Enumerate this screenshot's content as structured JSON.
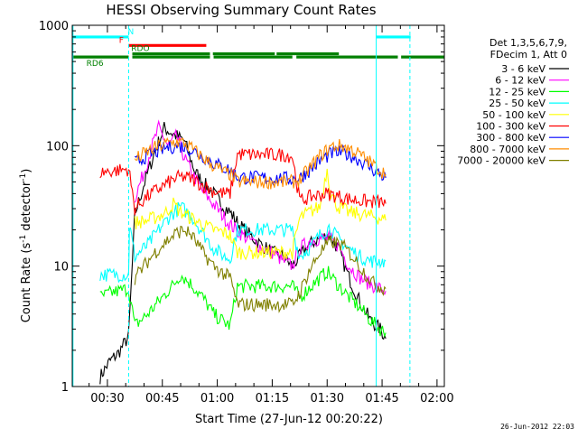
{
  "chart_data": {
    "type": "line",
    "title": "HESSI Observing Summary Count Rates",
    "xlabel": "Start Time (27-Jun-12 00:20:22)",
    "ylabel": "Count Rate (s",
    "ylabel_sup1": "-1",
    "ylabel_mid": " detector",
    "ylabel_sup2": "-1",
    "ylabel_end": ")",
    "yscale": "log",
    "ylim": [
      1,
      1000
    ],
    "xlim_min": [
      20.4,
      122.0
    ],
    "x_unit": "minutes after 00:00",
    "y_ticks": [
      {
        "value": 1,
        "label": "1"
      },
      {
        "value": 10,
        "label": "10"
      },
      {
        "value": 100,
        "label": "100"
      },
      {
        "value": 1000,
        "label": "1000"
      }
    ],
    "x_ticks": [
      {
        "value": 30,
        "label": "00:30"
      },
      {
        "value": 45,
        "label": "00:45"
      },
      {
        "value": 60,
        "label": "01:00"
      },
      {
        "value": 75,
        "label": "01:15"
      },
      {
        "value": 90,
        "label": "01:30"
      },
      {
        "value": 105,
        "label": "01:45"
      },
      {
        "value": 120,
        "label": "02:00"
      }
    ],
    "legend_header": [
      "Det 1,3,5,6,7,9,",
      "FDecim 1, Att 0"
    ],
    "series": [
      {
        "name": "3 - 6 keV",
        "color": "#000000",
        "values": [
          [
            28.0,
            1.2
          ],
          [
            30.5,
            1.6
          ],
          [
            33.0,
            1.9
          ],
          [
            35.8,
            2.6
          ],
          [
            37.5,
            27
          ],
          [
            40.2,
            50
          ],
          [
            43.0,
            90
          ],
          [
            45.5,
            140
          ],
          [
            48.0,
            125
          ],
          [
            51.0,
            110
          ],
          [
            54.0,
            60
          ],
          [
            56.5,
            48
          ],
          [
            59.0,
            40
          ],
          [
            61.5,
            32
          ],
          [
            63.5,
            28
          ],
          [
            66.0,
            22
          ],
          [
            69.0,
            18
          ],
          [
            72.0,
            15
          ],
          [
            75.0,
            13
          ],
          [
            78.0,
            12
          ],
          [
            80.5,
            10
          ],
          [
            82.5,
            12
          ],
          [
            85.0,
            15
          ],
          [
            88.0,
            17
          ],
          [
            90.5,
            18
          ],
          [
            93.0,
            14
          ],
          [
            96.0,
            8
          ],
          [
            99.0,
            5
          ],
          [
            102.0,
            3.5
          ],
          [
            104.5,
            3.0
          ],
          [
            106.0,
            2.5
          ]
        ]
      },
      {
        "name": "6 - 12 keV",
        "color": "#ff00ff",
        "values": [
          [
            37.5,
            37
          ],
          [
            40.0,
            60
          ],
          [
            42.0,
            95
          ],
          [
            44.0,
            140
          ],
          [
            46.5,
            100
          ],
          [
            49.0,
            120
          ],
          [
            51.0,
            80
          ],
          [
            53.0,
            60
          ],
          [
            56.0,
            42
          ],
          [
            60.0,
            30
          ],
          [
            63.5,
            22
          ],
          [
            67.0,
            18
          ],
          [
            71.0,
            15
          ],
          [
            75.0,
            13
          ],
          [
            78.0,
            11
          ],
          [
            80.5,
            10
          ],
          [
            82.5,
            14
          ],
          [
            85.0,
            16
          ],
          [
            88.0,
            17
          ],
          [
            90.5,
            17
          ],
          [
            93.0,
            15
          ],
          [
            96.0,
            10
          ],
          [
            99.0,
            8
          ],
          [
            102.0,
            7
          ],
          [
            104.5,
            6.5
          ],
          [
            106.0,
            6.2
          ]
        ]
      },
      {
        "name": "12 - 25 keV",
        "color": "#00ff00",
        "values": [
          [
            28.0,
            5.5
          ],
          [
            31.0,
            6.0
          ],
          [
            34.0,
            6.3
          ],
          [
            35.8,
            6.5
          ],
          [
            37.5,
            3.2
          ],
          [
            41.0,
            4.0
          ],
          [
            45.0,
            5.5
          ],
          [
            48.0,
            7.0
          ],
          [
            50.0,
            8.5
          ],
          [
            53.0,
            7.0
          ],
          [
            56.0,
            5.5
          ],
          [
            59.0,
            4.0
          ],
          [
            62.0,
            3.4
          ],
          [
            63.5,
            3.2
          ],
          [
            65.5,
            6.8
          ],
          [
            70.0,
            6.8
          ],
          [
            75.0,
            6.8
          ],
          [
            80.5,
            6.8
          ],
          [
            82.5,
            5.5
          ],
          [
            86.0,
            7.0
          ],
          [
            90.0,
            9.0
          ],
          [
            93.0,
            7.0
          ],
          [
            96.0,
            5.5
          ],
          [
            99.0,
            4.5
          ],
          [
            102.0,
            3.5
          ],
          [
            104.5,
            3.0
          ],
          [
            106.0,
            2.8
          ]
        ]
      },
      {
        "name": "25 - 50 keV",
        "color": "#00ffff",
        "values": [
          [
            28.0,
            8.5
          ],
          [
            35.8,
            8.5
          ],
          [
            36.0,
            22
          ],
          [
            37.5,
            12
          ],
          [
            41.0,
            15
          ],
          [
            44.0,
            20
          ],
          [
            47.0,
            26
          ],
          [
            50.0,
            31
          ],
          [
            53.0,
            26
          ],
          [
            56.0,
            19
          ],
          [
            59.0,
            14
          ],
          [
            62.0,
            12
          ],
          [
            63.5,
            11.5
          ],
          [
            65.5,
            20
          ],
          [
            72.0,
            20
          ],
          [
            80.5,
            20
          ],
          [
            82.5,
            12
          ],
          [
            85.0,
            14
          ],
          [
            88.0,
            18
          ],
          [
            90.5,
            21
          ],
          [
            93.0,
            17
          ],
          [
            96.0,
            14
          ],
          [
            99.0,
            12
          ],
          [
            102.0,
            11
          ],
          [
            104.5,
            11
          ],
          [
            106.0,
            11
          ]
        ]
      },
      {
        "name": "50 - 100 keV",
        "color": "#ffff00",
        "values": [
          [
            37.5,
            23
          ],
          [
            41.0,
            24
          ],
          [
            44.0,
            26
          ],
          [
            46.0,
            28
          ],
          [
            48.0,
            33
          ],
          [
            50.0,
            28
          ],
          [
            53.0,
            25
          ],
          [
            56.0,
            22
          ],
          [
            59.0,
            20
          ],
          [
            62.0,
            19
          ],
          [
            63.5,
            18
          ],
          [
            65.5,
            13
          ],
          [
            72.0,
            13
          ],
          [
            80.5,
            13
          ],
          [
            82.5,
            25
          ],
          [
            85.0,
            28
          ],
          [
            88.0,
            31
          ],
          [
            90.0,
            65
          ],
          [
            91.0,
            40
          ],
          [
            93.0,
            31
          ],
          [
            96.0,
            28
          ],
          [
            99.0,
            27
          ],
          [
            102.0,
            26
          ],
          [
            104.5,
            25
          ],
          [
            106.0,
            24
          ]
        ]
      },
      {
        "name": "100 - 300 keV",
        "color": "#ff0000",
        "values": [
          [
            28.0,
            60
          ],
          [
            35.8,
            64
          ],
          [
            37.5,
            30
          ],
          [
            40.0,
            36
          ],
          [
            43.0,
            42
          ],
          [
            46.0,
            48
          ],
          [
            49.0,
            54
          ],
          [
            51.0,
            55
          ],
          [
            53.0,
            53
          ],
          [
            56.0,
            47
          ],
          [
            59.0,
            42
          ],
          [
            62.0,
            40
          ],
          [
            63.5,
            40
          ],
          [
            65.5,
            85
          ],
          [
            72.0,
            84
          ],
          [
            78.0,
            84
          ],
          [
            80.5,
            82
          ],
          [
            82.5,
            35
          ],
          [
            86.0,
            38
          ],
          [
            90.0,
            40
          ],
          [
            93.0,
            38
          ],
          [
            96.0,
            36
          ],
          [
            99.0,
            35
          ],
          [
            102.0,
            34
          ],
          [
            104.5,
            34
          ],
          [
            106.0,
            33
          ]
        ]
      },
      {
        "name": "300 - 800 keV",
        "color": "#0000ff",
        "values": [
          [
            37.5,
            72
          ],
          [
            40.0,
            80
          ],
          [
            43.0,
            88
          ],
          [
            46.0,
            96
          ],
          [
            49.0,
            100
          ],
          [
            51.0,
            98
          ],
          [
            53.0,
            92
          ],
          [
            56.0,
            82
          ],
          [
            59.0,
            72
          ],
          [
            62.0,
            65
          ],
          [
            63.5,
            63
          ],
          [
            65.5,
            55
          ],
          [
            72.0,
            54
          ],
          [
            80.5,
            53
          ],
          [
            82.5,
            54
          ],
          [
            85.0,
            62
          ],
          [
            88.0,
            74
          ],
          [
            91.0,
            86
          ],
          [
            94.0,
            88
          ],
          [
            97.0,
            82
          ],
          [
            100.0,
            72
          ],
          [
            103.0,
            62
          ],
          [
            106.0,
            54
          ]
        ]
      },
      {
        "name": "800 - 7000 keV",
        "color": "#ff8c00",
        "values": [
          [
            37.5,
            76
          ],
          [
            40.0,
            86
          ],
          [
            43.0,
            96
          ],
          [
            46.0,
            104
          ],
          [
            49.0,
            108
          ],
          [
            51.0,
            105
          ],
          [
            53.0,
            95
          ],
          [
            56.0,
            80
          ],
          [
            59.0,
            68
          ],
          [
            62.0,
            60
          ],
          [
            63.5,
            58
          ],
          [
            65.5,
            50
          ],
          [
            72.0,
            50
          ],
          [
            80.5,
            50
          ],
          [
            82.5,
            52
          ],
          [
            85.0,
            64
          ],
          [
            88.0,
            82
          ],
          [
            91.0,
            98
          ],
          [
            94.0,
            100
          ],
          [
            97.0,
            92
          ],
          [
            100.0,
            80
          ],
          [
            103.0,
            68
          ],
          [
            106.0,
            58
          ]
        ]
      },
      {
        "name": "7000 - 20000 keV",
        "color": "#808000",
        "values": [
          [
            37.5,
            8.0
          ],
          [
            40.0,
            10
          ],
          [
            43.0,
            13
          ],
          [
            46.0,
            16
          ],
          [
            49.0,
            19
          ],
          [
            51.0,
            20
          ],
          [
            53.0,
            18
          ],
          [
            56.0,
            13
          ],
          [
            59.0,
            10
          ],
          [
            62.0,
            8.5
          ],
          [
            63.5,
            8.0
          ],
          [
            65.5,
            4.8
          ],
          [
            72.0,
            4.8
          ],
          [
            80.5,
            4.8
          ],
          [
            82.5,
            6.0
          ],
          [
            85.0,
            9
          ],
          [
            88.0,
            13
          ],
          [
            91.0,
            16
          ],
          [
            94.0,
            15
          ],
          [
            97.0,
            12
          ],
          [
            100.0,
            9
          ],
          [
            103.0,
            7
          ],
          [
            106.0,
            6.5
          ]
        ]
      }
    ],
    "flags": [
      {
        "name": "N",
        "color": "#00ffff",
        "level": 800,
        "label_at": 36.4,
        "segments": [
          [
            20.4,
            35.8
          ],
          [
            103.4,
            112.8
          ]
        ]
      },
      {
        "name": "F",
        "color": "#ff0000",
        "level": 680,
        "label_at": 33.8,
        "segments": [
          [
            35.8,
            57.0
          ]
        ]
      },
      {
        "name": "RDO",
        "color": "#008000",
        "level": 580,
        "label_at": 39.0,
        "segments": [
          [
            36.8,
            58.0
          ],
          [
            58.8,
            75.7
          ],
          [
            76.2,
            93.2
          ]
        ]
      },
      {
        "name": "RD6",
        "color": "#008000",
        "level": 545,
        "label_at": 26.6,
        "segments": [
          [
            20.4,
            35.8
          ],
          [
            36.8,
            58.0
          ],
          [
            59.0,
            80.5
          ],
          [
            81.6,
            109.3
          ],
          [
            110.2,
            122.0
          ]
        ]
      }
    ],
    "vlines": [
      {
        "x": 20.6,
        "style": "solid"
      },
      {
        "x": 35.8,
        "style": "dashed"
      },
      {
        "x": 103.4,
        "style": "solid"
      },
      {
        "x": 112.6,
        "style": "dashed"
      }
    ],
    "timestamp": "26-Jun-2012 22:03"
  }
}
